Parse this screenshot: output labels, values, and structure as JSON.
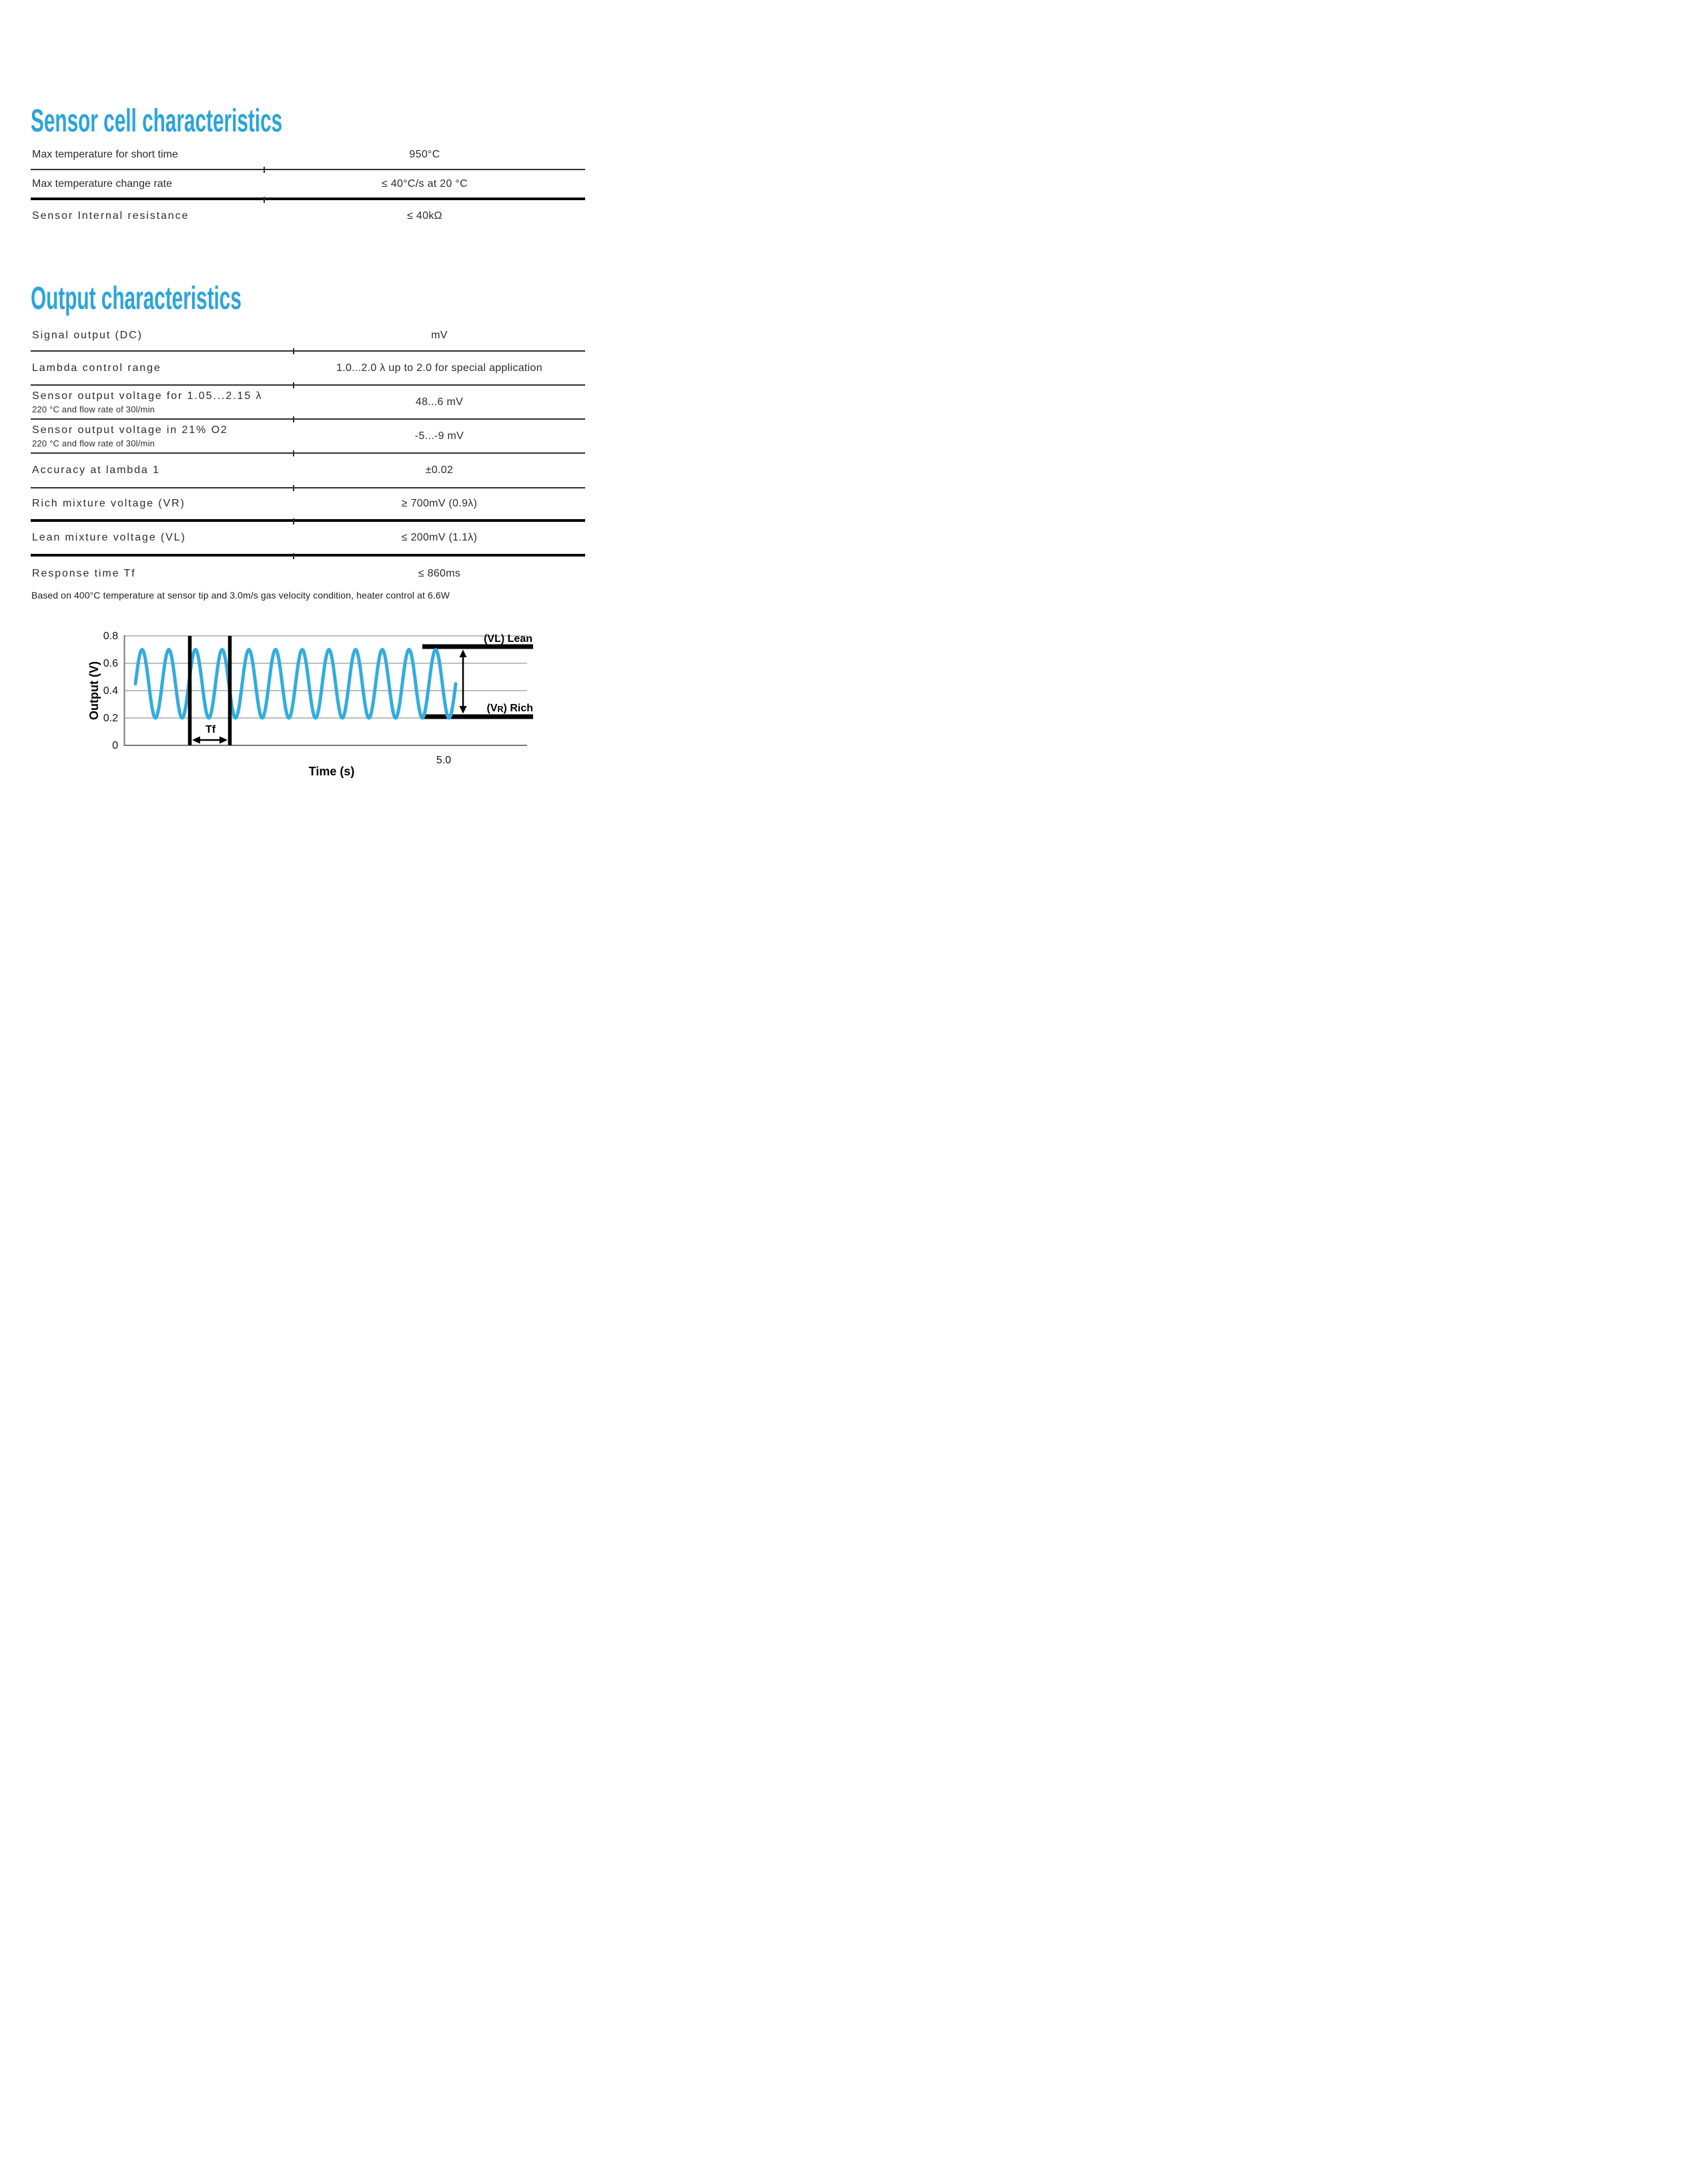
{
  "accent_color": "#2ba4da",
  "section_sensor": {
    "title": "Sensor cell characteristics",
    "table": {
      "rows": [
        {
          "label": "Max temperature for short time",
          "value": "950°C"
        },
        {
          "label": "Max temperature change rate",
          "value": "≤ 40°C/s at 20 °C"
        },
        {
          "label": "Sensor Internal resistance",
          "value": "≤ 40kΩ"
        }
      ]
    }
  },
  "section_output": {
    "title": "Output characteristics",
    "table": {
      "rows": [
        {
          "label": "Signal output (DC)",
          "sub": "",
          "value": "mV"
        },
        {
          "label": "Lambda control range",
          "sub": "",
          "value": "1.0...2.0 λ up to 2.0 for special application"
        },
        {
          "label": "Sensor output voltage for 1.05...2.15 λ",
          "sub": "220 °C and flow rate of 30l/min",
          "value": "48...6 mV"
        },
        {
          "label": "Sensor output voltage in 21% O2",
          "sub": "220 °C and flow rate of 30l/min",
          "value": "-5...-9 mV"
        },
        {
          "label": "Accuracy at lambda 1",
          "sub": "",
          "value": "±0.02"
        },
        {
          "label": "Rich mixture voltage (VR)",
          "sub": "",
          "value": "≥ 700mV (0.9λ)"
        },
        {
          "label": "Lean mixture voltage (VL)",
          "sub": "",
          "value": "≤ 200mV (1.1λ)"
        },
        {
          "label": "Response time Tf",
          "sub": "",
          "value": "≤ 860ms"
        }
      ]
    },
    "note": "Based on 400°C temperature at sensor tip and 3.0m/s gas velocity condition, heater control at 6.6W"
  },
  "chart_data": {
    "type": "line",
    "title": "",
    "xlabel": "Time (s)",
    "ylabel": "Output (V)",
    "ylim": [
      0,
      0.8
    ],
    "yticks": [
      "0",
      "0.2",
      "0.4",
      "0.6",
      "0.8"
    ],
    "xticks": [
      "5.0"
    ],
    "grid": true,
    "legend": false,
    "series": [
      {
        "name": "sensor-output-oscillation",
        "waveform": "sine",
        "v_mid": 0.45,
        "amplitude": 0.25,
        "v_peak": 0.7,
        "v_trough": 0.2,
        "cycles": 12,
        "period_s": 0.42,
        "color": "#32acde"
      }
    ],
    "annotations": {
      "lean_line_v": 0.72,
      "rich_line_v": 0.21,
      "tf_label": "Tf",
      "lean_label": {
        "pre": "(VL",
        "sub": "",
        "post": ") Lean"
      },
      "rich_label": {
        "pre": "(V",
        "sub": "R",
        "post": ") Rich"
      }
    }
  }
}
